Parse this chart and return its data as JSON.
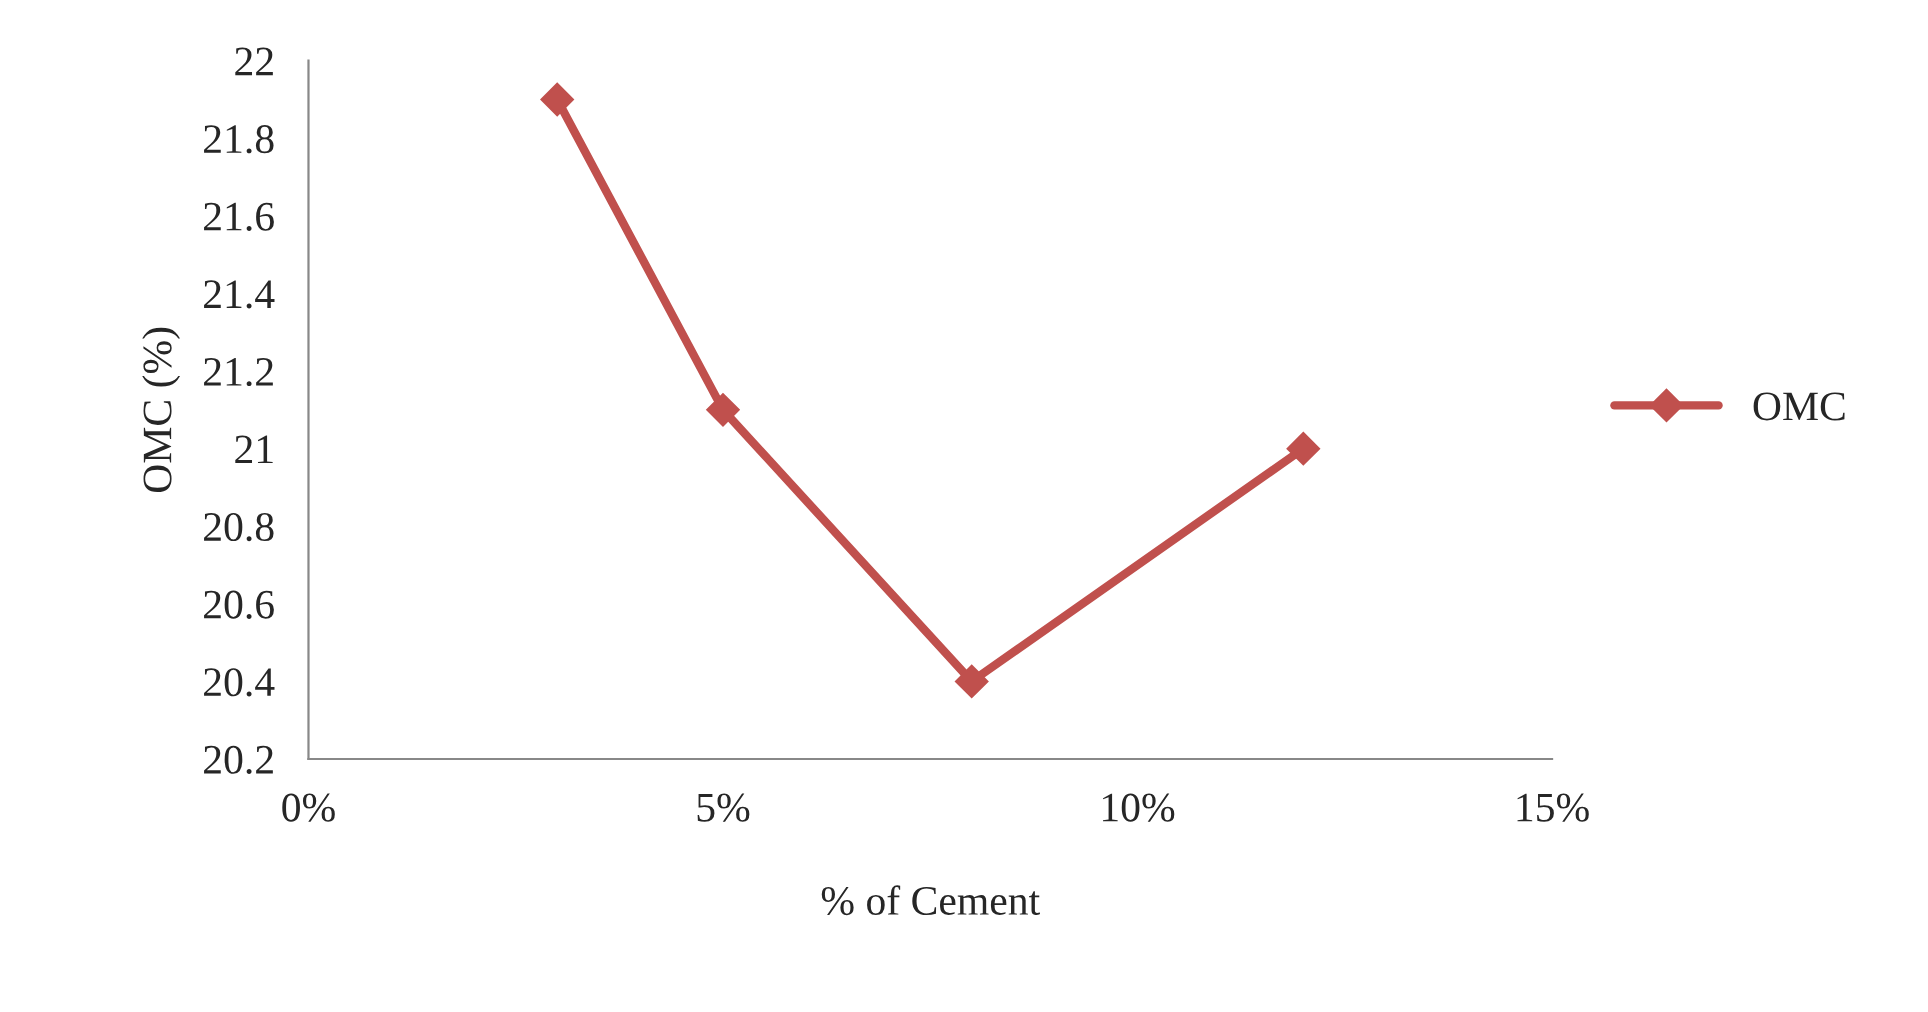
{
  "chart_data": {
    "type": "line",
    "xlabel": "% of Cement",
    "ylabel": "OMC (%)",
    "x": [
      3,
      5,
      8,
      12
    ],
    "series": [
      {
        "name": "OMC",
        "color": "#c0504d",
        "values": [
          21.9,
          21.1,
          20.4,
          21.0
        ]
      }
    ],
    "xlim": [
      0,
      15
    ],
    "xticks": [
      {
        "value": 0,
        "label": "0%"
      },
      {
        "value": 5,
        "label": "5%"
      },
      {
        "value": 10,
        "label": "10%"
      },
      {
        "value": 15,
        "label": "15%"
      }
    ],
    "ylim": [
      20.2,
      22
    ],
    "yticks": [
      20.2,
      20.4,
      20.6,
      20.8,
      21,
      21.2,
      21.4,
      21.6,
      21.8,
      22
    ],
    "grid": false,
    "legend": "right",
    "marker": "diamond",
    "line_style": "solid"
  }
}
